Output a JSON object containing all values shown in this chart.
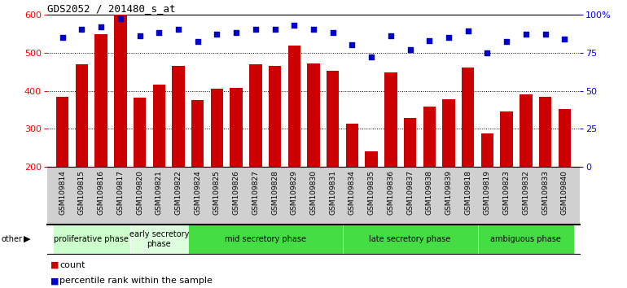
{
  "title": "GDS2052 / 201480_s_at",
  "samples": [
    "GSM109814",
    "GSM109815",
    "GSM109816",
    "GSM109817",
    "GSM109820",
    "GSM109821",
    "GSM109822",
    "GSM109824",
    "GSM109825",
    "GSM109826",
    "GSM109827",
    "GSM109828",
    "GSM109829",
    "GSM109830",
    "GSM109831",
    "GSM109834",
    "GSM109835",
    "GSM109836",
    "GSM109837",
    "GSM109838",
    "GSM109839",
    "GSM109818",
    "GSM109819",
    "GSM109823",
    "GSM109832",
    "GSM109833",
    "GSM109840"
  ],
  "counts": [
    383,
    470,
    548,
    601,
    381,
    415,
    465,
    375,
    405,
    408,
    470,
    465,
    518,
    471,
    453,
    314,
    241,
    447,
    329,
    358,
    378,
    460,
    289,
    346,
    391,
    384,
    352
  ],
  "percentile_ranks": [
    85,
    90,
    92,
    97,
    86,
    88,
    90,
    82,
    87,
    88,
    90,
    90,
    93,
    90,
    88,
    80,
    72,
    86,
    77,
    83,
    85,
    89,
    75,
    82,
    87,
    87,
    84
  ],
  "bar_color": "#cc0000",
  "dot_color": "#0000cc",
  "ylim_left": [
    200,
    600
  ],
  "ylim_right": [
    0,
    100
  ],
  "yticks_left": [
    200,
    300,
    400,
    500,
    600
  ],
  "yticks_right": [
    0,
    25,
    50,
    75,
    100
  ],
  "phases": [
    {
      "label": "proliferative phase",
      "start": 0,
      "end": 3,
      "color": "#ccffcc"
    },
    {
      "label": "early secretory\nphase",
      "start": 4,
      "end": 6,
      "color": "#ddffdd"
    },
    {
      "label": "mid secretory phase",
      "start": 7,
      "end": 14,
      "color": "#44dd44"
    },
    {
      "label": "late secretory phase",
      "start": 15,
      "end": 21,
      "color": "#44dd44"
    },
    {
      "label": "ambiguous phase",
      "start": 22,
      "end": 26,
      "color": "#44dd44"
    }
  ],
  "other_label": "other",
  "legend_count_label": "count",
  "legend_pct_label": "percentile rank within the sample",
  "tick_area_color": "#d0d0d0"
}
